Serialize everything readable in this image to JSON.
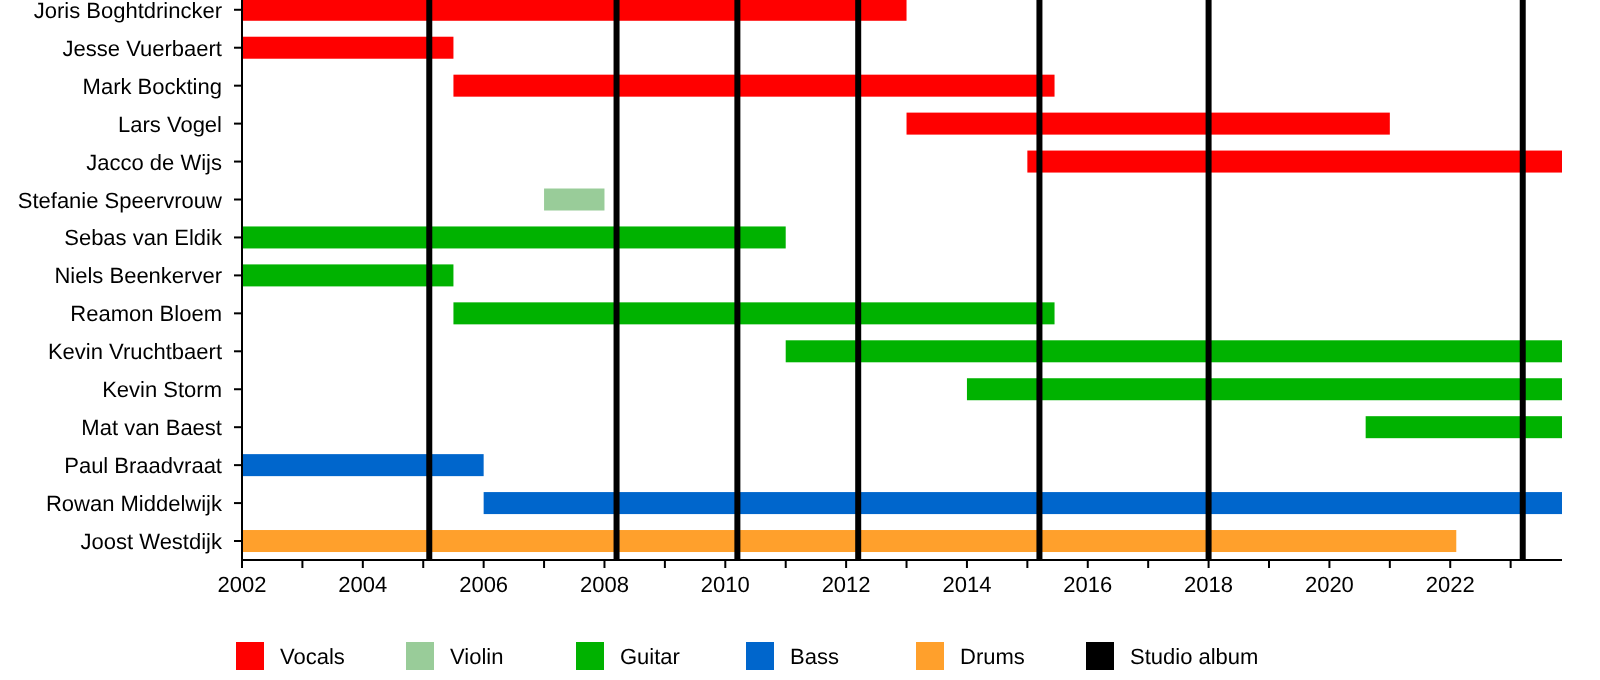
{
  "chart_data": {
    "type": "bar",
    "orientation": "horizontal",
    "categories": [
      "Joris Boghtdrincker",
      "Jesse Vuerbaert",
      "Mark Bockting",
      "Lars Vogel",
      "Jacco de Wijs",
      "Stefanie Speervrouw",
      "Sebas van Eldik",
      "Niels Beenkerver",
      "Reamon Bloem",
      "Kevin Vruchtbaert",
      "Kevin Storm",
      "Mat van Baest",
      "Paul Braadvraat",
      "Rowan Middelwijk",
      "Joost Westdijk"
    ],
    "series": [
      {
        "name": "Vocals",
        "color": "#ff0000",
        "base": [
          2002,
          2002,
          2005.5,
          2013,
          2015,
          null,
          null,
          null,
          null,
          null,
          null,
          null,
          null,
          null,
          null
        ],
        "values": [
          11,
          3.5,
          9.95,
          8,
          8.85,
          null,
          null,
          null,
          null,
          null,
          null,
          null,
          null,
          null,
          null
        ]
      },
      {
        "name": "Violin",
        "color": "#99cc99",
        "base": [
          null,
          null,
          null,
          null,
          null,
          2007,
          null,
          null,
          null,
          null,
          null,
          null,
          null,
          null,
          null
        ],
        "values": [
          null,
          null,
          null,
          null,
          null,
          1,
          null,
          null,
          null,
          null,
          null,
          null,
          null,
          null,
          null
        ]
      },
      {
        "name": "Guitar",
        "color": "#00b200",
        "base": [
          null,
          null,
          null,
          null,
          null,
          null,
          2002,
          2002,
          2005.5,
          2011,
          2014,
          2020.6,
          null,
          null,
          null
        ],
        "values": [
          null,
          null,
          null,
          null,
          null,
          null,
          9,
          3.5,
          9.95,
          12.85,
          9.85,
          3.25,
          null,
          null,
          null
        ]
      },
      {
        "name": "Bass",
        "color": "#0066cc",
        "base": [
          null,
          null,
          null,
          null,
          null,
          null,
          null,
          null,
          null,
          null,
          null,
          null,
          2002,
          2006,
          null
        ],
        "values": [
          null,
          null,
          null,
          null,
          null,
          null,
          null,
          null,
          null,
          null,
          null,
          null,
          4,
          17.85,
          null
        ]
      },
      {
        "name": "Drums",
        "color": "#ffa02c",
        "base": [
          null,
          null,
          null,
          null,
          null,
          null,
          null,
          null,
          null,
          null,
          null,
          null,
          null,
          null,
          2002
        ],
        "values": [
          null,
          null,
          null,
          null,
          null,
          null,
          null,
          null,
          null,
          null,
          null,
          null,
          null,
          null,
          20.1
        ]
      }
    ],
    "xlim": [
      2002,
      2023.85
    ],
    "xticks": [
      2002,
      {
        "value": 2003,
        "label": null
      },
      2004,
      {
        "value": 2005,
        "label": null
      },
      2006,
      {
        "value": 2007,
        "label": null
      },
      2008,
      {
        "value": 2009,
        "label": null
      },
      2010,
      {
        "value": 2011,
        "label": null
      },
      2012,
      {
        "value": 2013,
        "label": null
      },
      2014,
      {
        "value": 2015,
        "label": null
      },
      2016,
      {
        "value": 2017,
        "label": null
      },
      2018,
      {
        "value": 2019,
        "label": null
      },
      2020,
      {
        "value": 2021,
        "label": null
      },
      2022,
      {
        "value": 2023,
        "label": null
      }
    ],
    "ref_lines": [
      {
        "axis": "x",
        "value": 2005.1,
        "label": "Studio album",
        "color": "#000000"
      },
      {
        "axis": "x",
        "value": 2008.2,
        "color": "#000000"
      },
      {
        "axis": "x",
        "value": 2010.2,
        "color": "#000000"
      },
      {
        "axis": "x",
        "value": 2012.2,
        "color": "#000000"
      },
      {
        "axis": "x",
        "value": 2015.2,
        "color": "#000000"
      },
      {
        "axis": "x",
        "value": 2018.0,
        "color": "#000000"
      },
      {
        "axis": "x",
        "value": 2023.2,
        "color": "#000000"
      }
    ],
    "grid": false,
    "legend": "bottom"
  }
}
